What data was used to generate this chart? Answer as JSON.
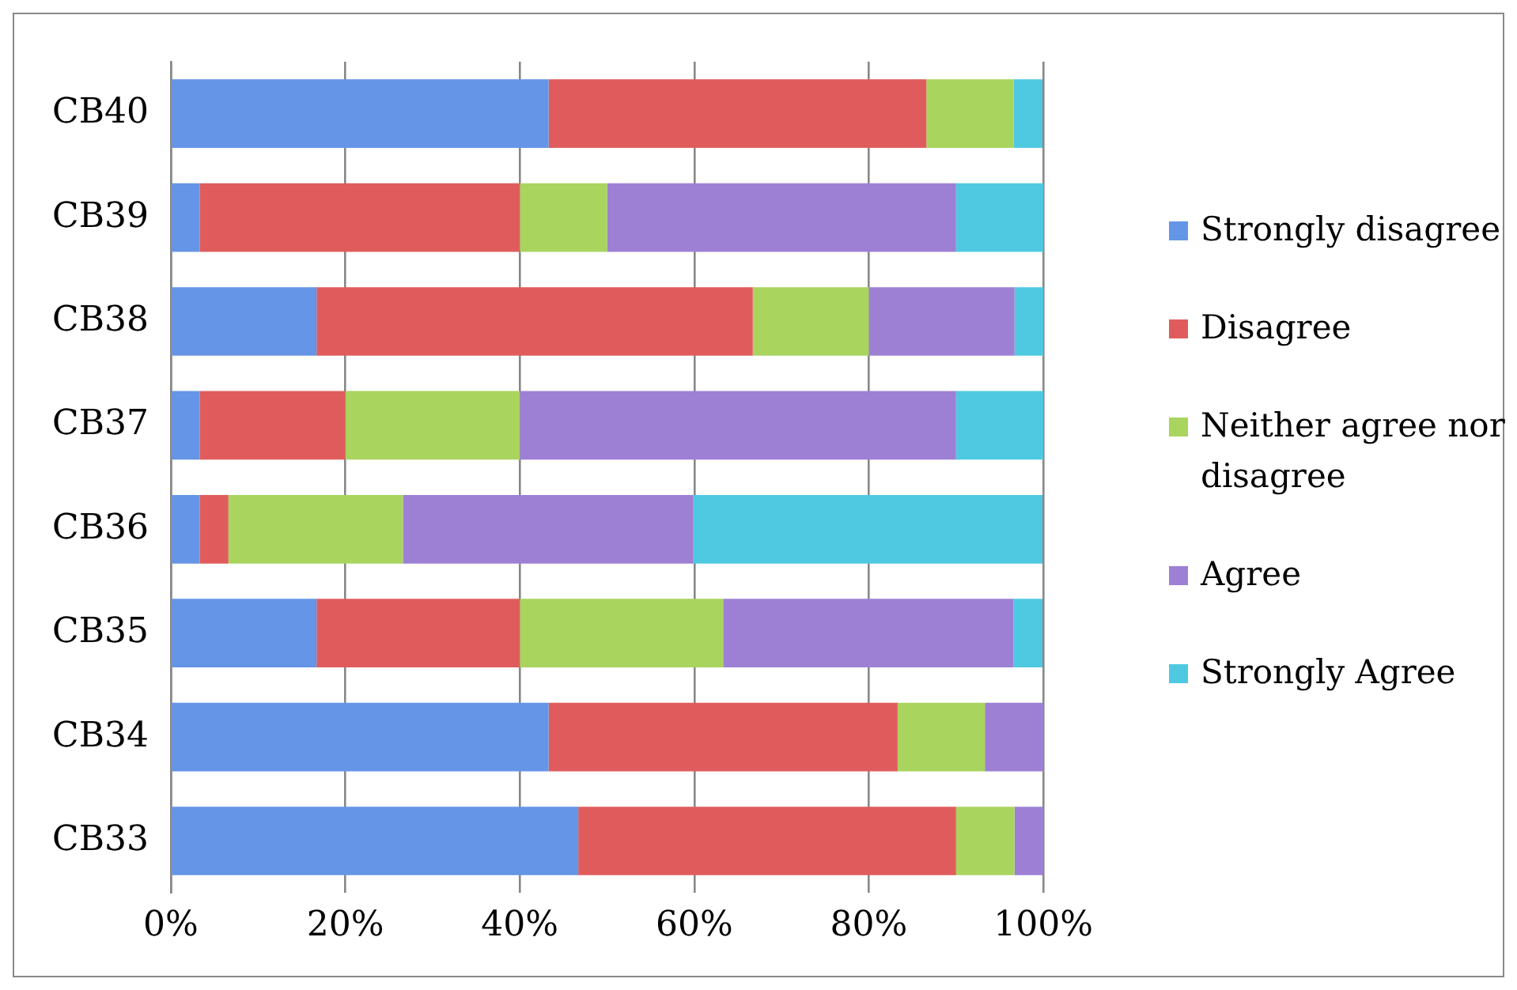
{
  "chart_data": {
    "type": "bar",
    "orientation": "horizontal",
    "stacked": true,
    "categories": [
      "CB40",
      "CB39",
      "CB38",
      "CB37",
      "CB36",
      "CB35",
      "CB34",
      "CB33"
    ],
    "series": [
      {
        "name": "Strongly disagree",
        "color": "#6495e6",
        "values": [
          43.3,
          3.3,
          16.7,
          3.3,
          3.3,
          16.7,
          43.3,
          46.7
        ]
      },
      {
        "name": "Disagree",
        "color": "#e05c5c",
        "values": [
          43.3,
          36.7,
          50,
          16.7,
          3.3,
          23.3,
          40,
          43.3
        ]
      },
      {
        "name": "Neither agree nor disagree",
        "color": "#a9d45e",
        "values": [
          10,
          10,
          13.3,
          20,
          20,
          23.3,
          10,
          6.7
        ]
      },
      {
        "name": "Agree",
        "color": "#9d80d4",
        "values": [
          0,
          40,
          16.7,
          50,
          33.3,
          33.3,
          6.7,
          3.3
        ]
      },
      {
        "name": "Strongly Agree",
        "color": "#4fc9e2",
        "values": [
          3.3,
          10,
          3.3,
          10,
          40,
          3.3,
          0,
          0
        ]
      }
    ],
    "xlim": [
      0,
      100
    ],
    "xticks": [
      {
        "value": 0,
        "label": "0%"
      },
      {
        "value": 20,
        "label": "20%"
      },
      {
        "value": 40,
        "label": "40%"
      },
      {
        "value": 60,
        "label": "60%"
      },
      {
        "value": 80,
        "label": "80%"
      },
      {
        "value": 100,
        "label": "100%"
      }
    ],
    "grid": "x",
    "legend": "right"
  }
}
